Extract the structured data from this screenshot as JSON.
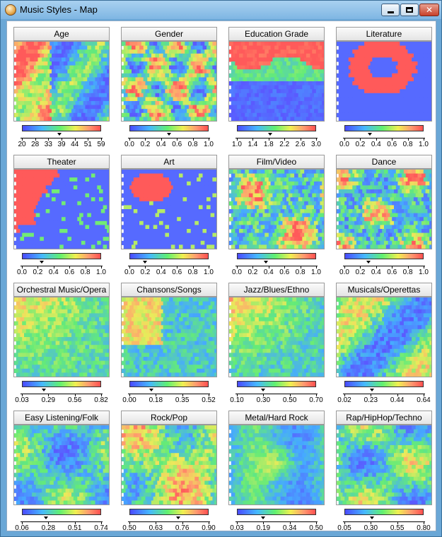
{
  "window": {
    "title": "Music Styles - Map",
    "buttons": {
      "minimize": "minimize",
      "maximize": "maximize",
      "close": "close"
    }
  },
  "colors": {
    "low": "#5a5aff",
    "mid": "#70f070",
    "high": "#ff5a5a"
  },
  "panels": [
    {
      "title": "Age",
      "ticks": [
        "20",
        "28",
        "33",
        "39",
        "44",
        "51",
        "59"
      ],
      "marker": 0.47,
      "maps": {
        "dominant": "mixed",
        "red_regions": "left"
      }
    },
    {
      "title": "Gender",
      "ticks": [
        "0.0",
        "0.2",
        "0.4",
        "0.6",
        "0.8",
        "1.0"
      ],
      "marker": 0.5
    },
    {
      "title": "Education Grade",
      "ticks": [
        "1.0",
        "1.4",
        "1.8",
        "2.2",
        "2.6",
        "3.0"
      ],
      "marker": 0.42
    },
    {
      "title": "Literature",
      "ticks": [
        "0.0",
        "0.2",
        "0.4",
        "0.6",
        "0.8",
        "1.0"
      ],
      "marker": 0.32
    },
    {
      "title": "Theater",
      "ticks": [
        "0.0",
        "0.2",
        "0.4",
        "0.6",
        "0.8",
        "1.0"
      ],
      "marker": 0.25
    },
    {
      "title": "Art",
      "ticks": [
        "0.0",
        "0.2",
        "0.4",
        "0.6",
        "0.8",
        "1.0"
      ],
      "marker": 0.2
    },
    {
      "title": "Film/Video",
      "ticks": [
        "0.0",
        "0.2",
        "0.4",
        "0.6",
        "0.8",
        "1.0"
      ],
      "marker": 0.37
    },
    {
      "title": "Dance",
      "ticks": [
        "0.0",
        "0.2",
        "0.4",
        "0.6",
        "0.8",
        "1.0"
      ],
      "marker": 0.3
    },
    {
      "title": "Orchestral Music/Opera",
      "ticks": [
        "0.03",
        "0.29",
        "0.56",
        "0.82"
      ],
      "marker": 0.28
    },
    {
      "title": "Chansons/Songs",
      "ticks": [
        "0.00",
        "0.18",
        "0.35",
        "0.52"
      ],
      "marker": 0.28
    },
    {
      "title": "Jazz/Blues/Ethno",
      "ticks": [
        "0.10",
        "0.30",
        "0.50",
        "0.70"
      ],
      "marker": 0.33
    },
    {
      "title": "Musicals/Operettas",
      "ticks": [
        "0.02",
        "0.23",
        "0.44",
        "0.64"
      ],
      "marker": 0.35
    },
    {
      "title": "Easy Listening/Folk",
      "ticks": [
        "0.06",
        "0.28",
        "0.51",
        "0.74"
      ],
      "marker": 0.3
    },
    {
      "title": "Rock/Pop",
      "ticks": [
        "0.50",
        "0.63",
        "0.76",
        "0.90"
      ],
      "marker": 0.62
    },
    {
      "title": "Metal/Hard Rock",
      "ticks": [
        "0.03",
        "0.19",
        "0.34",
        "0.50"
      ],
      "marker": 0.33
    },
    {
      "title": "Rap/HipHop/Techno",
      "ticks": [
        "0.05",
        "0.30",
        "0.55",
        "0.80"
      ],
      "marker": 0.35
    }
  ]
}
